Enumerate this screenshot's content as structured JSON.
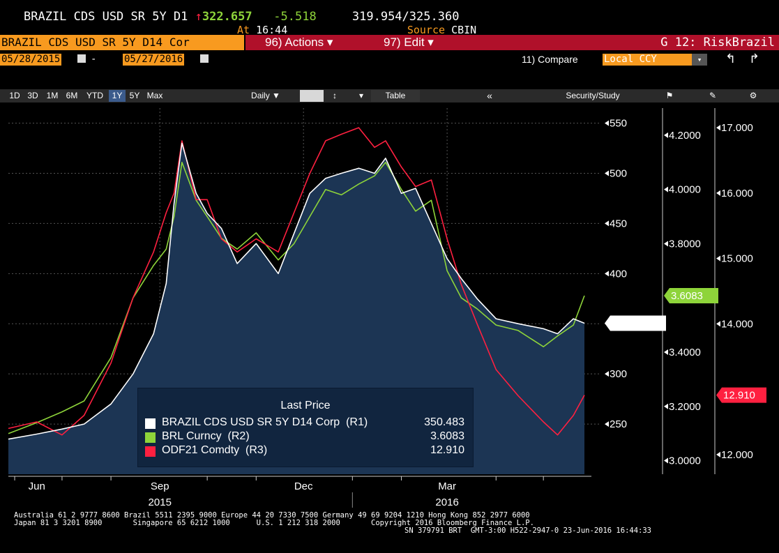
{
  "header": {
    "ticker": "BRAZIL CDS USD SR 5Y D1",
    "arrow": "↑",
    "last": "322.657",
    "change": "-5.518",
    "bid": "319.954",
    "sep": "/",
    "ask": "325.360",
    "at_label": "At",
    "time": "16:44",
    "source_label": "Source",
    "source": "CBIN"
  },
  "toolbar": {
    "security": "BRAZIL CDS USD SR 5Y D14 Cor",
    "actions": "96) Actions ▾",
    "edit": "97) Edit  ▾",
    "screen": "G 12: RiskBrazil",
    "date_from": "05/28/2015",
    "date_dash": "-",
    "date_to": "05/27/2016",
    "compare_label": "11) Compare",
    "compare_value": "Local CCY",
    "ranges": [
      "1D",
      "3D",
      "1M",
      "6M",
      "YTD",
      "1Y",
      "5Y",
      "Max"
    ],
    "active_range": "1Y",
    "daily": "Daily ▼",
    "table": "Table",
    "back": "«",
    "security_study": "Security/Study"
  },
  "colors": {
    "orange": "#f89a1f",
    "red_bar": "#b0102a",
    "area_fill": "#1c3554",
    "cds": "#ffffff",
    "brl": "#8ed43a",
    "odf": "#ff2040"
  },
  "legend": {
    "title": "Last Price",
    "rows": [
      {
        "name": "BRAZIL CDS USD SR 5Y D14 Corp  (R1)",
        "value": "350.483"
      },
      {
        "name": "BRL Curncy  (R2)",
        "value": "3.6083"
      },
      {
        "name": "ODF21 Comdty  (R3)",
        "value": "12.910"
      }
    ]
  },
  "chart_data": {
    "type": "line",
    "x_ticks": [
      "Jun",
      "Sep",
      "Dec",
      "Mar"
    ],
    "x_years": [
      "2015",
      "2016"
    ],
    "axes": {
      "r1": {
        "ticks": [
          "550",
          "500",
          "450",
          "400",
          "350",
          "300",
          "250"
        ],
        "ylim": [
          200,
          565
        ]
      },
      "r2": {
        "ticks": [
          "4.2000",
          "4.0000",
          "3.8000",
          "3.4000",
          "3.2000",
          "3.0000"
        ],
        "ylim": [
          2.95,
          4.3
        ]
      },
      "r3": {
        "ticks": [
          "17.000",
          "16.000",
          "15.000",
          "14.000",
          "12.000"
        ],
        "ylim": [
          11.7,
          17.3
        ]
      }
    },
    "last_labels": {
      "r1": "350.483",
      "r2": "3.6083",
      "r3": "12.910"
    },
    "x": [
      "2015-05-28",
      "2015-06-15",
      "2015-07-01",
      "2015-07-15",
      "2015-08-01",
      "2015-08-15",
      "2015-08-28",
      "2015-09-05",
      "2015-09-10",
      "2015-09-15",
      "2015-09-24",
      "2015-10-01",
      "2015-10-10",
      "2015-10-20",
      "2015-11-01",
      "2015-11-15",
      "2015-11-25",
      "2015-12-05",
      "2015-12-15",
      "2015-12-25",
      "2016-01-05",
      "2016-01-15",
      "2016-01-22",
      "2016-02-01",
      "2016-02-10",
      "2016-02-20",
      "2016-03-01",
      "2016-03-10",
      "2016-03-20",
      "2016-04-01",
      "2016-04-15",
      "2016-05-01",
      "2016-05-10",
      "2016-05-20",
      "2016-05-27"
    ],
    "series": [
      {
        "name": "BRAZIL CDS USD SR 5Y D14 Corp  (R1)",
        "axis": "r1",
        "values": [
          235,
          240,
          245,
          250,
          270,
          300,
          340,
          390,
          470,
          530,
          480,
          460,
          445,
          410,
          430,
          400,
          440,
          480,
          495,
          500,
          505,
          500,
          515,
          480,
          485,
          450,
          415,
          395,
          375,
          355,
          350,
          345,
          340,
          355,
          350.5
        ]
      },
      {
        "name": "BRL Curncy  (R2)",
        "axis": "r2",
        "values": [
          3.1,
          3.14,
          3.18,
          3.22,
          3.38,
          3.6,
          3.72,
          3.78,
          3.9,
          4.1,
          3.96,
          3.9,
          3.82,
          3.78,
          3.84,
          3.74,
          3.8,
          3.9,
          4.0,
          3.98,
          4.02,
          4.05,
          4.1,
          4.0,
          3.92,
          3.96,
          3.7,
          3.6,
          3.56,
          3.5,
          3.48,
          3.42,
          3.46,
          3.5,
          3.6083
        ]
      },
      {
        "name": "ODF21 Comdty  (R3)",
        "axis": "r3",
        "values": [
          12.4,
          12.5,
          12.3,
          12.6,
          13.4,
          14.4,
          15.1,
          15.7,
          16.0,
          16.8,
          15.9,
          15.9,
          15.3,
          15.1,
          15.3,
          15.1,
          15.7,
          16.3,
          16.8,
          16.9,
          17.0,
          16.7,
          16.8,
          16.4,
          16.1,
          16.2,
          15.3,
          14.6,
          14.0,
          13.3,
          12.9,
          12.5,
          12.3,
          12.6,
          12.91
        ]
      }
    ]
  },
  "footer": {
    "line1": "Australia 61 2 9777 8600 Brazil 5511 2395 9000 Europe 44 20 7330 7500 Germany 49 69 9204 1210 Hong Kong 852 2977 6000",
    "line2": "Japan 81 3 3201 8900       Singapore 65 6212 1000      U.S. 1 212 318 2000       Copyright 2016 Bloomberg Finance L.P.",
    "line3": "SN 379791 BRT  GMT-3:00 H522-2947-0 23-Jun-2016 16:44:33"
  }
}
